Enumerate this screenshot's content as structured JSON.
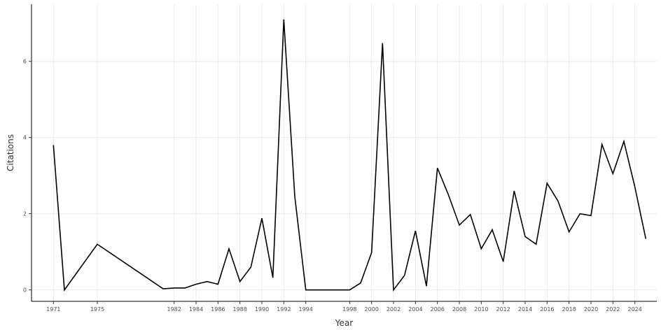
{
  "chart_data": {
    "type": "line",
    "title": "",
    "xlabel": "Year",
    "ylabel": "Citations",
    "x": [
      1971,
      1972,
      1975,
      1981,
      1982,
      1983,
      1984,
      1985,
      1986,
      1987,
      1988,
      1989,
      1990,
      1991,
      1992,
      1993,
      1994,
      1998,
      1999,
      2000,
      2001,
      2002,
      2003,
      2004,
      2005,
      2006,
      2007,
      2008,
      2009,
      2010,
      2011,
      2012,
      2013,
      2014,
      2015,
      2016,
      2017,
      2018,
      2019,
      2020,
      2021,
      2022,
      2023,
      2024,
      2025
    ],
    "y": [
      3.8,
      0.0,
      1.2,
      0.03,
      0.05,
      0.05,
      0.15,
      0.22,
      0.15,
      1.08,
      0.22,
      0.6,
      1.88,
      0.32,
      7.1,
      2.45,
      0.0,
      0.0,
      0.18,
      0.98,
      6.48,
      0.0,
      0.38,
      1.55,
      0.1,
      3.2,
      2.5,
      1.7,
      1.98,
      1.08,
      1.58,
      0.74,
      2.6,
      1.4,
      1.2,
      2.8,
      2.33,
      1.52,
      2.0,
      1.95,
      3.82,
      3.05,
      3.9,
      2.7,
      1.34
    ],
    "series": [
      {
        "values": [
          3.8,
          0.0,
          1.2,
          0.03,
          0.05,
          0.05,
          0.15,
          0.22,
          0.15,
          1.08,
          0.22,
          0.6,
          1.88,
          0.32,
          7.1,
          2.45,
          0.0,
          0.0,
          0.18,
          0.98,
          6.48,
          0.0,
          0.38,
          1.55,
          0.1,
          3.2,
          2.5,
          1.7,
          1.98,
          1.08,
          1.58,
          0.74,
          2.6,
          1.4,
          1.2,
          2.8,
          2.33,
          1.52,
          2.0,
          1.95,
          3.82,
          3.05,
          3.9,
          2.7,
          1.34
        ],
        "color": "#000000"
      }
    ],
    "x_ticks": [
      1971,
      1975,
      1982,
      1984,
      1986,
      1988,
      1990,
      1992,
      1994,
      1998,
      2000,
      2002,
      2004,
      2006,
      2008,
      2010,
      2012,
      2014,
      2016,
      2018,
      2020,
      2022,
      2024
    ],
    "x_tick_labels": [
      "1971",
      "1975",
      "1982",
      "1984",
      "1986",
      "1988",
      "1990",
      "1992",
      "1994",
      "1998",
      "2000",
      "2002",
      "2004",
      "2006",
      "2008",
      "2010",
      "2012",
      "2014",
      "2016",
      "2018",
      "2020",
      "2022",
      "2024"
    ],
    "y_ticks": [
      0,
      2,
      4,
      6
    ],
    "y_tick_labels": [
      "0",
      "2",
      "4",
      "6"
    ],
    "ylim": [
      -0.3,
      7.5
    ],
    "xlim": [
      1969,
      2026
    ],
    "grid": true,
    "line_color": "#000000",
    "grid_color": "#ebebeb"
  }
}
